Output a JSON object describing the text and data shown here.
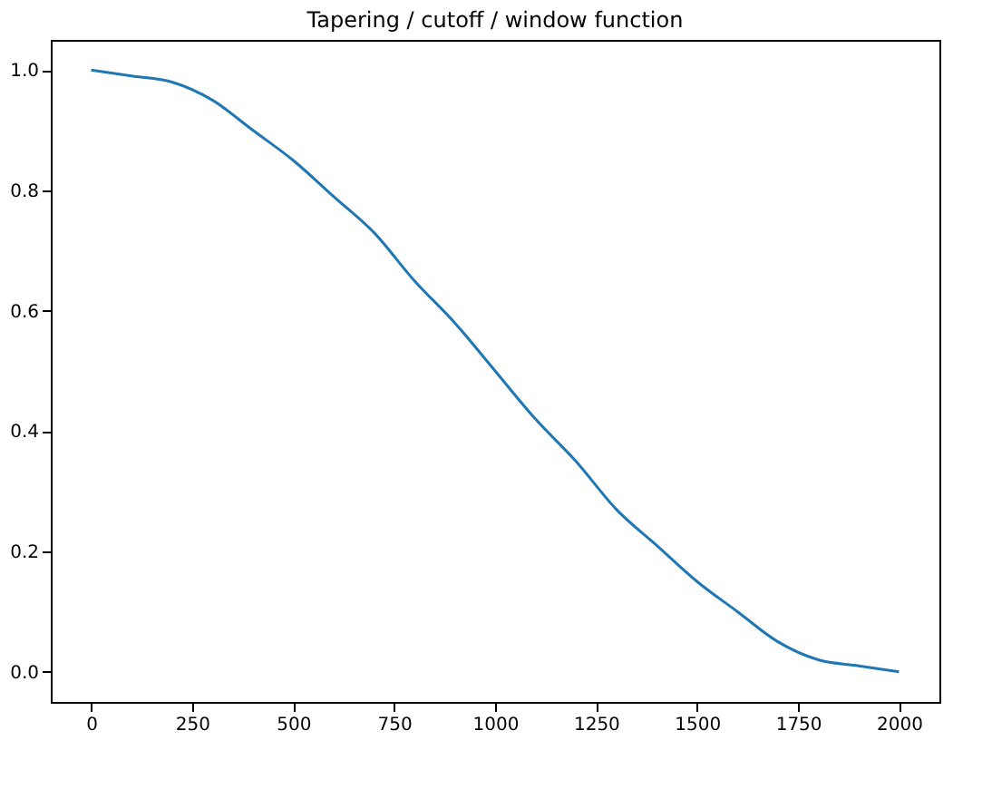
{
  "chart_data": {
    "type": "line",
    "title": "Tapering / cutoff / window function",
    "x": [
      0,
      100,
      200,
      300,
      400,
      500,
      600,
      700,
      800,
      900,
      1000,
      1100,
      1200,
      1300,
      1400,
      1500,
      1600,
      1700,
      1800,
      1900,
      2000
    ],
    "series": [
      {
        "color": "#1f77b4",
        "values": [
          1.0,
          0.99,
          0.98,
          0.95,
          0.9,
          0.85,
          0.79,
          0.73,
          0.65,
          0.58,
          0.5,
          0.42,
          0.35,
          0.27,
          0.21,
          0.15,
          0.1,
          0.05,
          0.02,
          0.01,
          0.0
        ]
      }
    ],
    "xlim": [
      -100,
      2100
    ],
    "xticks": [
      0,
      250,
      500,
      750,
      1000,
      1250,
      1500,
      1750,
      2000
    ],
    "ylim": [
      -0.05,
      1.05
    ],
    "yticks": [
      {
        "value": 0,
        "label": "0.0"
      },
      {
        "value": 0.2,
        "label": "0.2"
      },
      {
        "value": 0.4,
        "label": "0.4"
      },
      {
        "value": 0.6,
        "label": "0.6"
      },
      {
        "value": 0.8,
        "label": "0.8"
      },
      {
        "value": 1.0,
        "label": "1.0"
      }
    ],
    "grid": false,
    "marker": "none",
    "line_style": "solid"
  }
}
